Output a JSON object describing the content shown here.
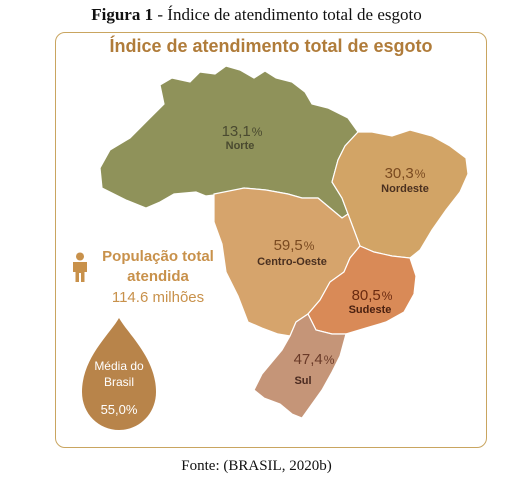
{
  "figure": {
    "label": "Figura 1",
    "separator": " - ",
    "title": "Índice de atendimento total de esgoto",
    "source": "Fonte: (BRASIL, 2020b)"
  },
  "panel": {
    "title": "Índice de atendimento total de esgoto"
  },
  "regions": [
    {
      "id": "norte",
      "name": "Norte",
      "value": "13,1",
      "unit": "%",
      "color": "#8f925a"
    },
    {
      "id": "nordeste",
      "name": "Nordeste",
      "value": "30,3",
      "unit": "%",
      "color": "#d2a466"
    },
    {
      "id": "centro-oeste",
      "name": "Centro-Oeste",
      "value": "59,5",
      "unit": "%",
      "color": "#d6a46c"
    },
    {
      "id": "sudeste",
      "name": "Sudeste",
      "value": "80,5",
      "unit": "%",
      "color": "#d98a57"
    },
    {
      "id": "sul",
      "name": "Sul",
      "value": "47,4",
      "unit": "%",
      "color": "#c59578"
    }
  ],
  "population": {
    "label": "População total atendida",
    "value": "114.6 milhões",
    "icon": "person-icon",
    "color": "#c8914b"
  },
  "average": {
    "label": "Média do Brasil",
    "value": "55,0%",
    "color": "#b8844a"
  }
}
